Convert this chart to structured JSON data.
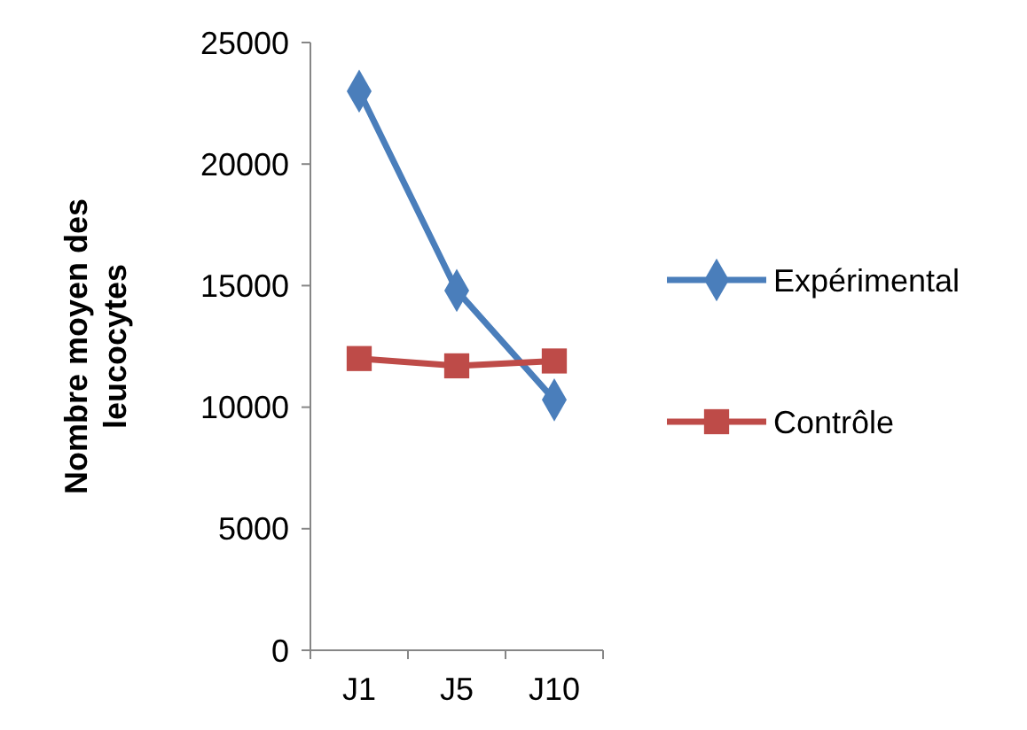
{
  "chart_data": {
    "type": "line",
    "ylabel": "Nombre moyen des leucocytes",
    "categories": [
      "J1",
      "J5",
      "J10"
    ],
    "series": [
      {
        "name": "Expérimental",
        "color": "#4a7ebb",
        "values": [
          23000,
          14800,
          10300
        ],
        "marker": "diamond"
      },
      {
        "name": "Contrôle",
        "color": "#be4b48",
        "values": [
          12000,
          11700,
          11900
        ],
        "marker": "square"
      }
    ],
    "ylim": [
      0,
      25000
    ],
    "yticks": [
      0,
      5000,
      10000,
      15000,
      20000,
      25000
    ],
    "grid": false,
    "legend": "right"
  }
}
